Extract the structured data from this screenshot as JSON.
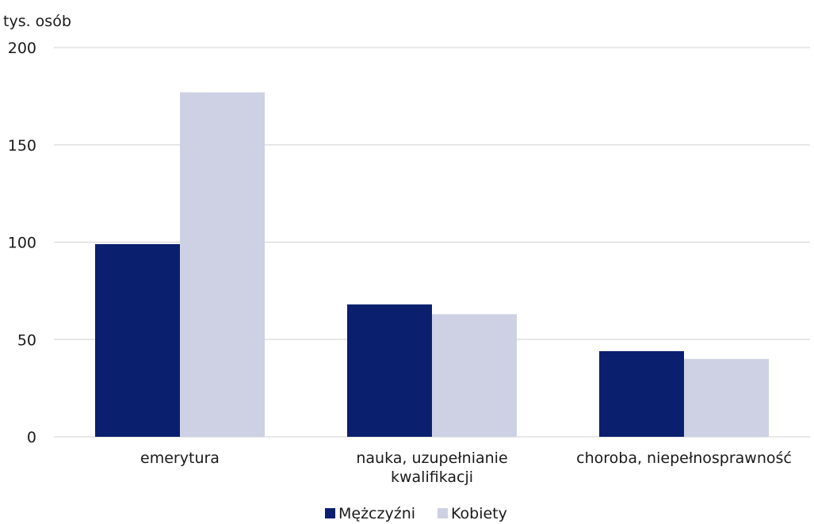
{
  "chart_data": {
    "type": "bar",
    "unit_label": "tys. osób",
    "categories": [
      [
        "emerytura"
      ],
      [
        "nauka, uzupełnianie",
        "kwalifikacji"
      ],
      [
        "choroba, niepełnosprawność"
      ]
    ],
    "series": [
      {
        "name": "Mężczyźni",
        "values": [
          99,
          68,
          44
        ],
        "color": "#0a1f6e"
      },
      {
        "name": "Kobiety",
        "values": [
          177,
          63,
          40
        ],
        "color": "#cdd1e3"
      }
    ],
    "ylim": [
      0,
      200
    ],
    "yticks": [
      0,
      50,
      100,
      150,
      200
    ],
    "grid": true,
    "legend_position": "bottom-center"
  }
}
